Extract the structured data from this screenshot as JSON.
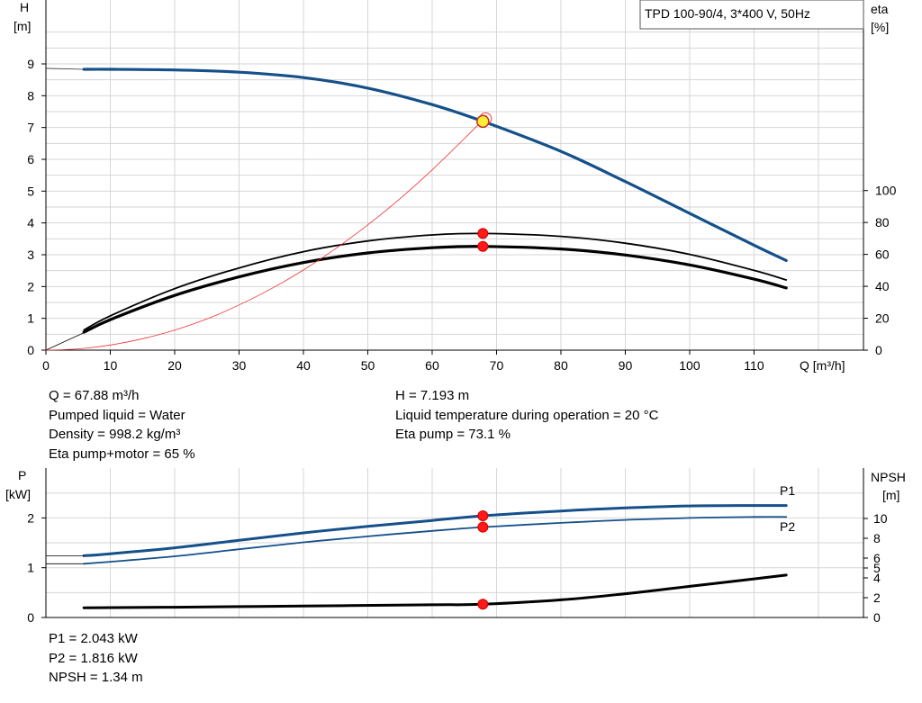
{
  "chart_data": [
    {
      "type": "line",
      "title_box": "TPD 100-90/4, 3*400 V, 50Hz",
      "xlabel": "Q [m³/h]",
      "ylabel_left": [
        "H",
        "[m]"
      ],
      "ylabel_right": [
        "eta",
        "[%]"
      ],
      "xlim": [
        0,
        127
      ],
      "ylim_left": [
        0,
        10.5
      ],
      "ylim_right_eta": [
        0,
        100
      ],
      "x_ticks": [
        0,
        10,
        20,
        30,
        40,
        50,
        60,
        70,
        80,
        90,
        100,
        110
      ],
      "y_ticks_left": [
        0,
        1,
        2,
        3,
        4,
        5,
        6,
        7,
        8,
        9
      ],
      "y_ticks_right": [
        0,
        20,
        40,
        60,
        80,
        100
      ],
      "grid": true,
      "series": [
        {
          "axis": "left",
          "color": "#15508a",
          "x": [
            5.9,
            10,
            20,
            30,
            40,
            50,
            60,
            67.88,
            80,
            90,
            100,
            110,
            115
          ],
          "y": [
            8.83,
            8.83,
            8.81,
            8.74,
            8.57,
            8.24,
            7.72,
            7.193,
            6.25,
            5.3,
            4.3,
            3.3,
            2.82
          ]
        },
        {
          "axis": "right",
          "color": "#000000",
          "width": 1.8,
          "x": [
            5.9,
            10,
            20,
            30,
            40,
            50,
            60,
            67.88,
            80,
            90,
            100,
            110,
            115
          ],
          "y": [
            12.6,
            21.5,
            38.5,
            51.5,
            61.7,
            68.4,
            72.2,
            73.1,
            71.3,
            67.0,
            60.0,
            50.0,
            44.0
          ]
        },
        {
          "axis": "right",
          "color": "#000000",
          "width": 3.2,
          "x": [
            5.9,
            10,
            20,
            30,
            40,
            50,
            60,
            67.88,
            80,
            90,
            100,
            110,
            115
          ],
          "y": [
            11.2,
            19.1,
            34.3,
            45.9,
            54.9,
            60.9,
            64.2,
            65.0,
            63.4,
            59.6,
            53.4,
            44.5,
            39.0
          ]
        },
        {
          "axis": "left",
          "color": "#000000",
          "width": 0.8,
          "x": [
            0,
            5.9
          ],
          "y": [
            0,
            0.55
          ]
        },
        {
          "axis": "left",
          "color": "#ee3333",
          "width": 0.8,
          "x": [
            0,
            5,
            10,
            15,
            20,
            25,
            30,
            35,
            40,
            45,
            50,
            55,
            60,
            65,
            68.5
          ],
          "y": [
            0,
            0.04,
            0.16,
            0.36,
            0.63,
            0.98,
            1.42,
            1.93,
            2.52,
            3.19,
            3.94,
            4.76,
            5.67,
            6.65,
            7.37
          ]
        }
      ],
      "markers": [
        {
          "axis": "left",
          "x": 67.88,
          "y": 7.193,
          "type": "operating-point"
        },
        {
          "axis": "right",
          "x": 67.88,
          "y": 73.1
        },
        {
          "axis": "right",
          "x": 67.88,
          "y": 65.0
        }
      ]
    },
    {
      "type": "line",
      "ylabel_left": [
        "P",
        "[kW]"
      ],
      "ylabel_right": [
        "NPSH",
        "[m]"
      ],
      "xlim": [
        0,
        127
      ],
      "ylim_left": [
        0,
        3
      ],
      "ylim_right": [
        0,
        14.4
      ],
      "y_ticks_left": [
        0,
        1,
        2
      ],
      "y_ticks_right": [
        0,
        2,
        4,
        5,
        6,
        8,
        10
      ],
      "grid": true,
      "series": [
        {
          "name": "P1",
          "axis": "left",
          "color": "#15508a",
          "width": 3,
          "x": [
            5.9,
            10,
            20,
            30,
            40,
            50,
            60,
            67.88,
            80,
            90,
            100,
            110,
            115
          ],
          "y": [
            1.24,
            1.28,
            1.4,
            1.55,
            1.7,
            1.83,
            1.95,
            2.043,
            2.14,
            2.2,
            2.24,
            2.25,
            2.25
          ]
        },
        {
          "name": "P2",
          "axis": "left",
          "color": "#15508a",
          "width": 1.8,
          "x": [
            5.9,
            10,
            20,
            30,
            40,
            50,
            60,
            67.88,
            80,
            90,
            100,
            110,
            115
          ],
          "y": [
            1.08,
            1.12,
            1.23,
            1.37,
            1.51,
            1.63,
            1.74,
            1.816,
            1.9,
            1.96,
            2.0,
            2.02,
            2.02
          ]
        },
        {
          "name": "",
          "axis": "right",
          "color": "#000000",
          "width": 3,
          "x": [
            5.9,
            20,
            40,
            60,
            67.88,
            80,
            90,
            100,
            110,
            115
          ],
          "y": [
            0.98,
            1.04,
            1.16,
            1.28,
            1.34,
            1.78,
            2.4,
            3.15,
            3.9,
            4.28
          ]
        },
        {
          "name": "",
          "axis": "left",
          "color": "#000000",
          "width": 0.8,
          "x": [
            0,
            5.9
          ],
          "y": [
            1.24,
            1.24
          ]
        },
        {
          "name": "",
          "axis": "left",
          "color": "#000000",
          "width": 0.8,
          "x": [
            0,
            5.9
          ],
          "y": [
            1.08,
            1.08
          ]
        }
      ],
      "markers": [
        {
          "axis": "left",
          "x": 67.88,
          "y": 2.043
        },
        {
          "axis": "left",
          "x": 67.88,
          "y": 1.816
        },
        {
          "axis": "right",
          "x": 67.88,
          "y": 1.34
        }
      ]
    }
  ],
  "info_main_left": [
    "Q = 67.88 m³/h",
    "Pumped liquid = Water",
    "Density = 998.2 kg/m³",
    "Eta pump+motor = 65 %"
  ],
  "info_main_right": [
    "H = 7.193 m",
    "Liquid temperature during operation = 20 °C",
    "Eta pump = 73.1 %"
  ],
  "info_power": [
    "P1 = 2.043 kW",
    "P2 = 1.816 kW",
    "NPSH = 1.34 m"
  ]
}
